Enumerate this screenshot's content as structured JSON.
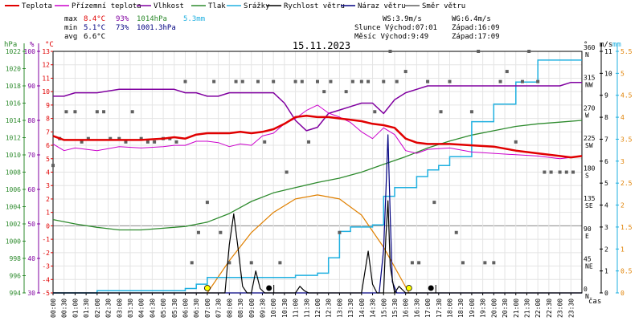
{
  "legend": [
    {
      "label": "Teplota",
      "color": "#e00000"
    },
    {
      "label": "Přízemní teplota",
      "color": "#cc00cc"
    },
    {
      "label": "Vlhkost",
      "color": "#8000a0"
    },
    {
      "label": "Tlak",
      "color": "#2e8b2e"
    },
    {
      "label": "Srážky",
      "color": "#20b0e0"
    },
    {
      "label": "Rychlost větru",
      "color": "#000000"
    },
    {
      "label": "Náraz větru",
      "color": "#000080"
    },
    {
      "label": "Směr větru",
      "color": "#808080"
    }
  ],
  "stats": {
    "max_label": "max",
    "max_temp": "8.4°C",
    "max_hum": "93%",
    "max_press": "1014hPa",
    "max_rain": "5.3mm",
    "min_label": "min",
    "min_temp": "5.1°C",
    "min_hum": "73%",
    "min_press": "1001.3hPa",
    "avg_label": "avg",
    "avg_temp": "6.6°C"
  },
  "wind_info": {
    "ws": "WS:3.9m/s",
    "wg": "WG:6.4m/s"
  },
  "sun_info": {
    "rise": "Slunce Východ:07:01",
    "set": "Západ:16:09"
  },
  "moon_info": {
    "rise": "Měsíc  Východ:9:49",
    "set": "Západ:17:09"
  },
  "date": "15.11.2023",
  "axis_units": {
    "hpa": "hPa",
    "pct": "%",
    "degc": "°C",
    "deg": "°",
    "ms": "m/s",
    "mm": "mm",
    "cas": "čas"
  },
  "colors": {
    "temp": "#e00000",
    "ground": "#cc00cc",
    "hum": "#8000a0",
    "press": "#2e8b2e",
    "rain": "#20b0e0",
    "wind": "#000000",
    "gust": "#000080",
    "dir": "#606060",
    "sun": "#e08000",
    "axis_left_press": "#2e8b2e",
    "axis_pct": "#8000a0",
    "axis_temp": "#e00000",
    "axis_rain": "#e08000"
  },
  "chart_data": {
    "type": "line",
    "title": "15.11.2023",
    "x_ticks": [
      "00:00",
      "00:30",
      "01:00",
      "01:30",
      "02:00",
      "02:30",
      "03:00",
      "03:30",
      "04:00",
      "04:30",
      "05:00",
      "05:30",
      "06:00",
      "06:30",
      "07:00",
      "07:30",
      "08:00",
      "08:30",
      "09:00",
      "09:30",
      "10:00",
      "10:30",
      "11:00",
      "11:30",
      "12:00",
      "12:30",
      "13:00",
      "13:30",
      "14:00",
      "14:30",
      "15:00",
      "15:30",
      "16:00",
      "16:30",
      "17:00",
      "17:30",
      "18:00",
      "18:30",
      "19:00",
      "19:30",
      "20:00",
      "20:30",
      "21:00",
      "21:30",
      "22:00",
      "22:30",
      "23:00",
      "23:30"
    ],
    "axes": {
      "temp_c": {
        "min": -5,
        "max": 13,
        "ticks": [
          -5,
          -4,
          -3,
          -2,
          -1,
          0,
          1,
          2,
          3,
          4,
          5,
          6,
          7,
          8,
          9,
          10,
          11,
          12,
          13
        ]
      },
      "humidity_pct": {
        "min": 30,
        "max": 100,
        "ticks": [
          30,
          40,
          50,
          60,
          70,
          80,
          90,
          100
        ]
      },
      "pressure_hpa": {
        "min": 994,
        "max": 1022,
        "ticks": [
          994,
          996,
          998,
          1000,
          1002,
          1004,
          1006,
          1008,
          1010,
          1012,
          1014,
          1016,
          1018,
          1020,
          1022
        ]
      },
      "wind_dir_deg": {
        "ticks": [
          {
            "deg": 0,
            "label": "N"
          },
          {
            "deg": 45,
            "label": "NE"
          },
          {
            "deg": 90,
            "label": "E"
          },
          {
            "deg": 135,
            "label": "SE"
          },
          {
            "deg": 180,
            "label": "S"
          },
          {
            "deg": 225,
            "label": "SW"
          },
          {
            "deg": 270,
            "label": "W"
          },
          {
            "deg": 315,
            "label": "NW"
          },
          {
            "deg": 360,
            "label": "N"
          }
        ]
      },
      "wind_ms": {
        "min": 0,
        "max": 11,
        "ticks": [
          0,
          1,
          2,
          3,
          4,
          5,
          6,
          7,
          8,
          9,
          10,
          11
        ]
      },
      "rain_mm": {
        "min": 0,
        "max": 5.5,
        "ticks": [
          0,
          0.5,
          1,
          1.5,
          2,
          2.5,
          3,
          3.5,
          4,
          4.5,
          5,
          5.5
        ]
      }
    },
    "series": [
      {
        "name": "Teplota",
        "axis": "temp_c",
        "x": [
          0,
          0.5,
          1,
          2,
          3,
          4,
          5,
          5.5,
          6,
          6.5,
          7,
          7.5,
          8,
          8.5,
          9,
          9.5,
          10,
          10.5,
          11,
          11.5,
          12,
          12.5,
          13,
          13.5,
          14,
          14.5,
          15,
          15.5,
          16,
          16.5,
          17,
          18,
          19,
          20,
          21,
          22,
          23,
          23.5,
          24
        ],
        "y": [
          6.7,
          6.4,
          6.4,
          6.4,
          6.4,
          6.4,
          6.5,
          6.6,
          6.5,
          6.8,
          6.9,
          6.9,
          6.9,
          7.0,
          6.9,
          7.0,
          7.2,
          7.6,
          8.1,
          8.2,
          8.1,
          8.1,
          8.0,
          7.9,
          7.8,
          7.6,
          7.5,
          7.3,
          6.5,
          6.2,
          6.1,
          6.1,
          6.0,
          5.9,
          5.6,
          5.4,
          5.2,
          5.1,
          5.2
        ]
      },
      {
        "name": "Přízemní teplota",
        "axis": "temp_c",
        "x": [
          0,
          0.5,
          1,
          2,
          3,
          4,
          5,
          5.5,
          6,
          6.5,
          7,
          7.5,
          8,
          8.5,
          9,
          9.5,
          10,
          10.5,
          11,
          11.5,
          12,
          12.5,
          13,
          13.5,
          14,
          14.5,
          15,
          15.5,
          16,
          16.5,
          17,
          18,
          19,
          20,
          21,
          22,
          23,
          23.5,
          24
        ],
        "y": [
          6.1,
          5.6,
          5.8,
          5.6,
          5.9,
          5.8,
          5.9,
          6.0,
          6.0,
          6.3,
          6.3,
          6.2,
          5.9,
          6.1,
          6.0,
          6.7,
          6.9,
          7.6,
          8.0,
          8.6,
          9.0,
          8.4,
          8.1,
          7.7,
          7.0,
          6.5,
          7.3,
          6.8,
          5.6,
          5.4,
          5.7,
          5.8,
          5.5,
          5.4,
          5.3,
          5.2,
          5.0,
          5.1,
          5.2
        ]
      },
      {
        "name": "Vlhkost",
        "axis": "humidity_pct",
        "x": [
          0,
          0.5,
          1,
          2,
          3,
          4,
          5,
          5.5,
          6,
          6.5,
          7,
          7.5,
          8,
          8.5,
          9,
          9.5,
          10,
          10.5,
          11,
          11.5,
          12,
          12.5,
          13,
          13.5,
          14,
          14.5,
          15,
          15.5,
          16,
          16.5,
          17,
          18,
          19,
          20,
          21,
          22,
          23,
          23.5,
          24
        ],
        "y": [
          87,
          87,
          88,
          88,
          89,
          89,
          89,
          89,
          88,
          88,
          87,
          87,
          88,
          88,
          88,
          88,
          88,
          85,
          80,
          77,
          78,
          82,
          83,
          84,
          85,
          85,
          82,
          86,
          88,
          89,
          90,
          90,
          90,
          90,
          90,
          90,
          90,
          91,
          91
        ]
      },
      {
        "name": "Tlak",
        "axis": "pressure_hpa",
        "x": [
          0,
          1,
          2,
          3,
          4,
          5,
          6,
          7,
          8,
          9,
          10,
          11,
          12,
          13,
          14,
          15,
          16,
          17,
          18,
          19,
          20,
          21,
          22,
          23,
          24
        ],
        "y": [
          1002.5,
          1002.0,
          1001.6,
          1001.3,
          1001.3,
          1001.5,
          1001.7,
          1002.2,
          1003.2,
          1004.6,
          1005.6,
          1006.2,
          1006.8,
          1007.3,
          1008.0,
          1008.9,
          1009.8,
          1010.8,
          1011.6,
          1012.3,
          1012.8,
          1013.3,
          1013.6,
          1013.8,
          1014.0
        ]
      },
      {
        "name": "Srážky",
        "axis": "rain_mm",
        "x": [
          0,
          1.5,
          2,
          3,
          4,
          5,
          6,
          6.5,
          7,
          8,
          9,
          10,
          11,
          12,
          12.5,
          13,
          13.5,
          14,
          14.5,
          15,
          15.5,
          16,
          16.5,
          17,
          17.5,
          18,
          19,
          20,
          21,
          22,
          23,
          24
        ],
        "y": [
          0,
          0,
          0.05,
          0.05,
          0.05,
          0.05,
          0.1,
          0.2,
          0.35,
          0.35,
          0.35,
          0.35,
          0.4,
          0.45,
          0.8,
          1.4,
          1.5,
          1.5,
          1.55,
          2.2,
          2.4,
          2.4,
          2.65,
          2.8,
          2.9,
          3.1,
          3.9,
          4.3,
          4.8,
          5.3,
          5.3,
          5.3
        ]
      },
      {
        "name": "Rychlost větru",
        "axis": "wind_ms",
        "x": [
          0,
          7.5,
          7.8,
          8,
          8.2,
          8.4,
          8.6,
          8.8,
          9.0,
          9.2,
          9.4,
          9.6,
          9.8,
          10,
          11,
          11.2,
          11.4,
          11.6,
          14,
          14.3,
          14.5,
          14.7,
          15,
          15.1,
          15.2,
          15.3,
          15.5,
          15.7,
          16,
          16.2,
          16.4,
          17,
          24
        ],
        "y": [
          0,
          0,
          0,
          2.2,
          3.6,
          2.0,
          0.3,
          0,
          0,
          1.0,
          0.2,
          0,
          0,
          0,
          0,
          0.3,
          0.1,
          0,
          0,
          1.9,
          0.4,
          0,
          0,
          2.5,
          4.2,
          1.2,
          0,
          0.3,
          0,
          0,
          0,
          0,
          0
        ]
      },
      {
        "name": "Náraz větru",
        "axis": "wind_ms",
        "x": [
          0,
          14.8,
          15.0,
          15.1,
          15.2,
          15.3,
          15.4,
          15.6,
          24
        ],
        "y": [
          0,
          0,
          2.0,
          4.5,
          7.2,
          3.5,
          0.5,
          0,
          0
        ]
      },
      {
        "name": "Směr větru",
        "axis": "wind_dir_deg",
        "x": [
          0,
          0.3,
          0.6,
          1,
          1.3,
          1.6,
          2,
          2.3,
          2.6,
          3,
          3.3,
          3.6,
          4,
          4.3,
          4.6,
          5,
          5.3,
          5.6,
          6,
          6.3,
          6.6,
          7,
          7.3,
          7.6,
          8,
          8.3,
          8.6,
          9,
          9.3,
          9.6,
          10,
          10.3,
          10.6,
          11,
          11.3,
          11.6,
          12,
          12.3,
          12.6,
          13,
          13.3,
          13.6,
          14,
          14.3,
          14.6,
          15,
          15.3,
          15.6,
          16,
          16.3,
          16.6,
          17,
          17.3,
          17.6,
          18,
          18.3,
          18.6,
          19,
          19.3,
          19.6,
          20,
          20.3,
          20.6,
          21,
          21.3,
          21.6,
          22,
          22.3,
          22.6,
          23,
          23.3,
          23.6
        ],
        "y": [
          190,
          230,
          270,
          270,
          225,
          230,
          270,
          270,
          230,
          230,
          225,
          270,
          230,
          225,
          225,
          230,
          230,
          225,
          315,
          45,
          90,
          135,
          315,
          90,
          45,
          315,
          315,
          45,
          315,
          225,
          315,
          45,
          180,
          315,
          315,
          225,
          315,
          300,
          315,
          90,
          300,
          315,
          315,
          315,
          270,
          315,
          360,
          315,
          330,
          45,
          45,
          315,
          135,
          270,
          315,
          90,
          45,
          270,
          360,
          45,
          45,
          315,
          330,
          225,
          315,
          360,
          315,
          180,
          180,
          180,
          180,
          180
        ]
      },
      {
        "name": "Slunce",
        "axis": "temp_c",
        "x": [
          7.0,
          8,
          9,
          10,
          11,
          12,
          13,
          14,
          15,
          16.15
        ],
        "y": [
          -5,
          -2.6,
          -0.5,
          1.0,
          2.0,
          2.3,
          2.0,
          0.8,
          -1.6,
          -5
        ]
      }
    ],
    "markers": [
      {
        "kind": "sunrise",
        "x": 7.0
      },
      {
        "kind": "sunset",
        "x": 16.15
      },
      {
        "kind": "moonrise",
        "x": 9.8
      },
      {
        "kind": "moonset",
        "x": 17.15
      }
    ],
    "grid": true,
    "legend_position": "top"
  }
}
